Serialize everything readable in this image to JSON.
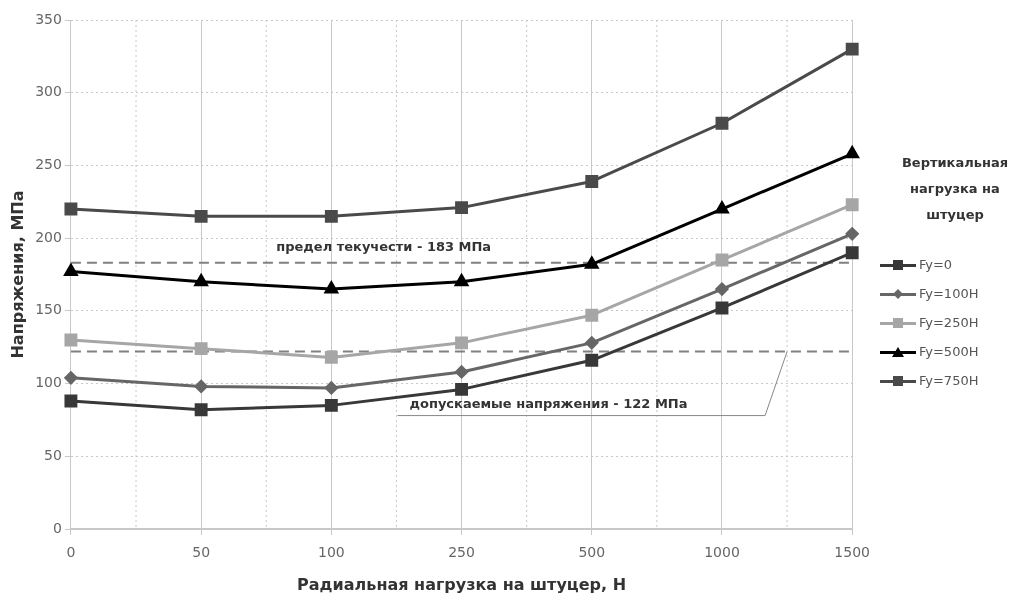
{
  "chart_data": {
    "type": "line",
    "xlabel": "Радиальная нагрузка на штуцер, Н",
    "ylabel": "Напряжения, МПа",
    "legend_title": "Вертикальная нагрузка на штуцер",
    "categories": [
      "0",
      "50",
      "100",
      "250",
      "500",
      "1000",
      "1500"
    ],
    "series": [
      {
        "name": "Fy=0",
        "color": "#383838",
        "marker": "square",
        "values": [
          88,
          82,
          85,
          96,
          116,
          152,
          190
        ]
      },
      {
        "name": "Fy=100Н",
        "color": "#666666",
        "marker": "diamond",
        "values": [
          104,
          98,
          97,
          108,
          128,
          165,
          203
        ]
      },
      {
        "name": "Fy=250Н",
        "color": "#a6a6a6",
        "marker": "square",
        "values": [
          130,
          124,
          118,
          128,
          147,
          185,
          223
        ]
      },
      {
        "name": "Fy=500Н",
        "color": "#000000",
        "marker": "triangle",
        "values": [
          177,
          170,
          165,
          170,
          182,
          220,
          258
        ]
      },
      {
        "name": "Fy=750Н",
        "color": "#4a4a4a",
        "marker": "square",
        "values": [
          220,
          215,
          215,
          221,
          239,
          279,
          330
        ]
      }
    ],
    "ylim": [
      0,
      350
    ],
    "yticks": [
      0,
      50,
      100,
      150,
      200,
      250,
      300,
      350
    ],
    "grid": true,
    "legend": "right",
    "line_style": "solid",
    "ref_lines": [
      {
        "axis": "y",
        "value": 183,
        "label": "предел текучести - 183 МПа",
        "color": "#808080",
        "line_style": "dashed"
      },
      {
        "axis": "y",
        "value": 122,
        "label": "допускаемые напряжения - 122 МПа",
        "color": "#808080",
        "line_style": "dashed"
      }
    ]
  }
}
